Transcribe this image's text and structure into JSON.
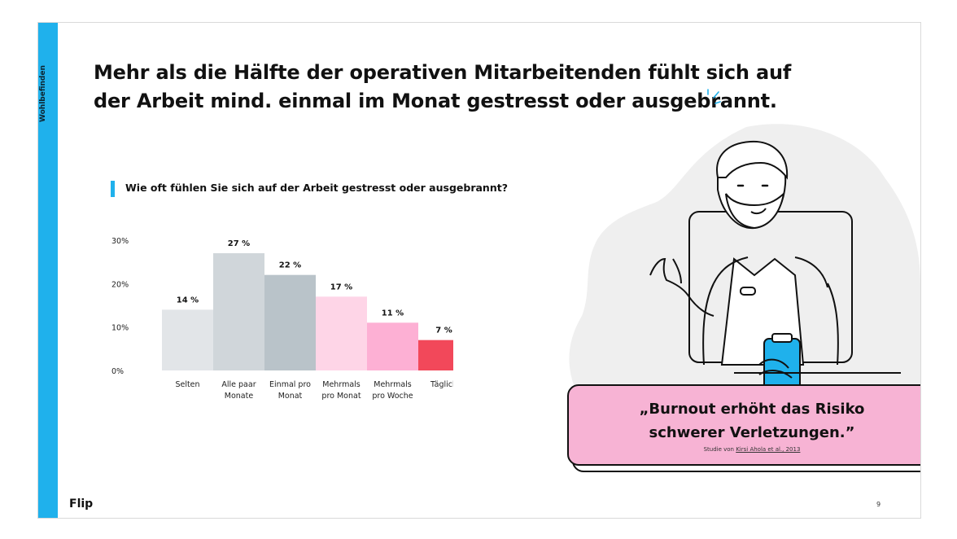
{
  "sidebar": {
    "section_label": "Wohlbefinden"
  },
  "headline": {
    "line1": "Mehr als die Hälfte der operativen Mitarbeitenden fühlt sich auf",
    "line2": "der Arbeit mind. einmal im Monat gestresst oder ausgebrannt."
  },
  "chart_data": {
    "type": "bar",
    "title": "Wie oft fühlen Sie sich auf der Arbeit gestresst oder ausgebrannt?",
    "categories": [
      [
        "Selten"
      ],
      [
        "Alle paar",
        "Monate"
      ],
      [
        "Einmal pro",
        "Monat"
      ],
      [
        "Mehrmals",
        "pro Monat"
      ],
      [
        "Mehrmals",
        "pro Woche"
      ],
      [
        "Täglich"
      ]
    ],
    "values": [
      14,
      27,
      22,
      17,
      11,
      7
    ],
    "value_labels": [
      "14 %",
      "27 %",
      "22 %",
      "17 %",
      "11 %",
      "7 %"
    ],
    "bar_colors": [
      "#e2e5e8",
      "#d0d6da",
      "#b9c3c9",
      "#fed5e7",
      "#fdb0d4",
      "#f2485a"
    ],
    "y_ticks": [
      0,
      10,
      20,
      30
    ],
    "y_tick_labels": [
      "0%",
      "10%",
      "20%",
      "30%"
    ],
    "ylim": [
      0,
      30
    ],
    "grid": false,
    "legend": "none"
  },
  "quote": {
    "line1": "„Burnout erhöht das Risiko",
    "line2": "schwerer Verletzungen.”",
    "source_prefix": "Studie von ",
    "source_link": "Kirsi Ahola et al., 2013"
  },
  "footer": {
    "logo": "Flip",
    "page_number": "9"
  },
  "colors": {
    "accent_blue": "#1fb1ec",
    "quote_pink": "#f7b3d4",
    "blob_grey": "#efefef"
  },
  "illustration": {
    "icon": "worker-with-clipboard-illustration"
  }
}
